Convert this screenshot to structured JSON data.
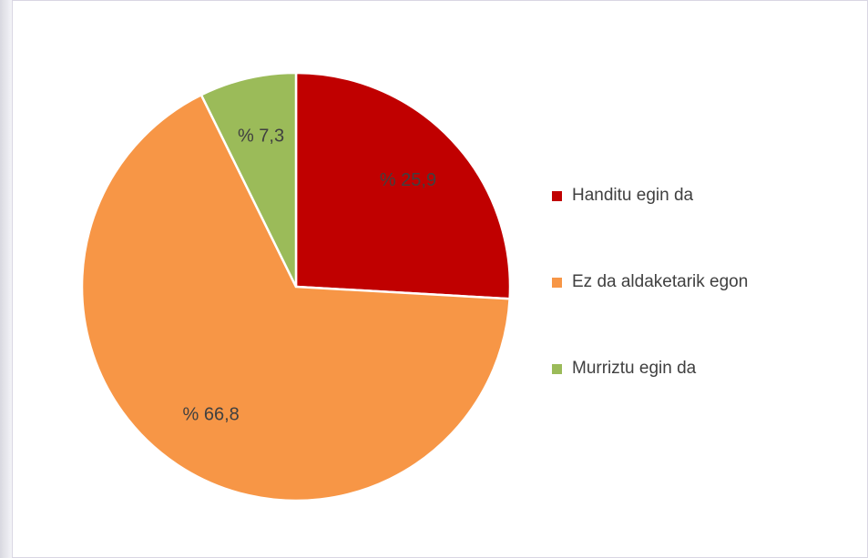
{
  "chart_data": {
    "type": "pie",
    "categories": [
      "Handitu egin da",
      "Ez da aldaketarik egon",
      "Murriztu egin da"
    ],
    "values": [
      25.9,
      66.8,
      7.3
    ],
    "value_labels": [
      "% 25,9",
      "% 66,8",
      "% 7,3"
    ],
    "colors": [
      "#c00000",
      "#f79646",
      "#9bbb59"
    ],
    "legend": "right"
  }
}
